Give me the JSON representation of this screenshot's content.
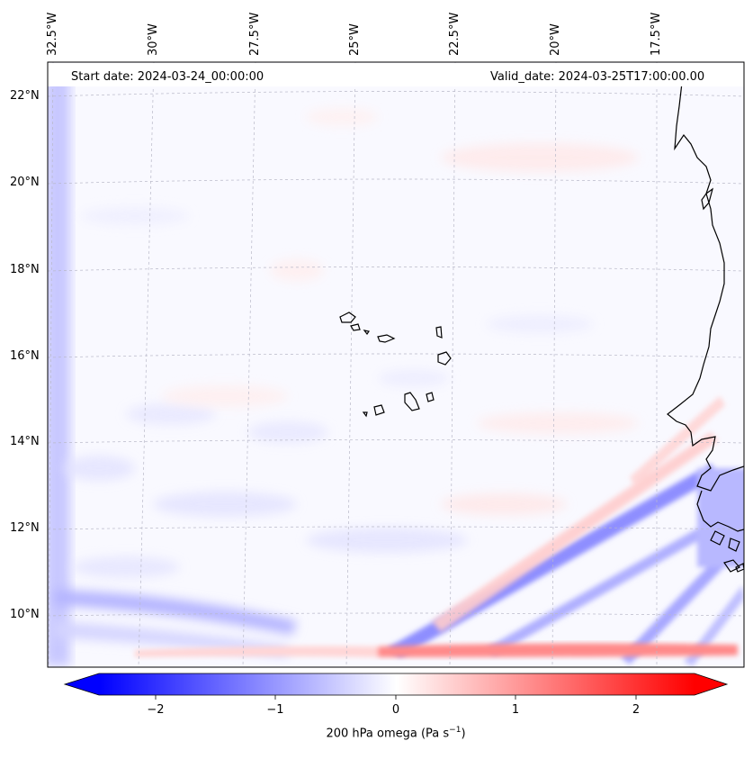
{
  "map": {
    "start_date": "Start date: 2024-03-24_00:00:00",
    "valid_date": "Valid_date: 2024-03-25T17:00:00.00",
    "lat_labels": [
      "22°N",
      "20°N",
      "18°N",
      "16°N",
      "14°N",
      "12°N",
      "10°N"
    ],
    "lon_labels": [
      "32.5°W",
      "30°W",
      "27.5°W",
      "25°W",
      "22.5°W",
      "20°W",
      "17.5°W"
    ]
  },
  "colorbar": {
    "label_prefix": "200 hPa omega (Pa s",
    "label_exp": "−1",
    "label_suffix": ")",
    "ticks": [
      "−2",
      "−1",
      "0",
      "1",
      "2"
    ],
    "min": -2.7,
    "max": 2.7,
    "colors": {
      "negative": "#0000ff",
      "zero": "#ffffff",
      "positive": "#ff0000"
    }
  }
}
